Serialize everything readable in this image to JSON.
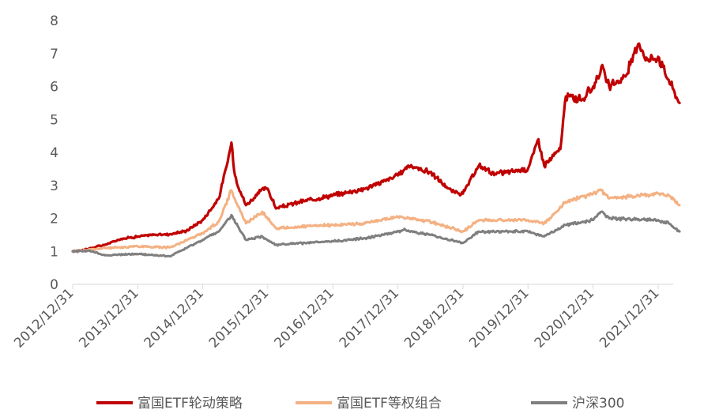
{
  "chart_data": {
    "type": "line",
    "title": "",
    "xlabel": "",
    "ylabel": "",
    "ylim": [
      0,
      8
    ],
    "yticks": [
      "0",
      "1",
      "2",
      "3",
      "4",
      "5",
      "6",
      "7",
      "8"
    ],
    "xticks": [
      "2012/12/31",
      "2013/12/31",
      "2014/12/31",
      "2015/12/31",
      "2016/12/31",
      "2017/12/31",
      "2018/12/31",
      "2019/12/31",
      "2020/12/31",
      "2021/12/31"
    ],
    "x_start": "2012/12/31",
    "x_end": "2022/04/30",
    "grid": false,
    "legend_position": "bottom",
    "series": [
      {
        "name": "富国ETF轮动策略",
        "color": "#C00000",
        "points": [
          [
            "2012/12/31",
            1.0
          ],
          [
            "2013/03/31",
            1.08
          ],
          [
            "2013/06/30",
            1.2
          ],
          [
            "2013/09/30",
            1.38
          ],
          [
            "2013/12/31",
            1.45
          ],
          [
            "2014/03/31",
            1.5
          ],
          [
            "2014/06/30",
            1.52
          ],
          [
            "2014/09/30",
            1.62
          ],
          [
            "2014/12/31",
            1.95
          ],
          [
            "2015/03/31",
            2.6
          ],
          [
            "2015/05/15",
            3.6
          ],
          [
            "2015/06/10",
            4.3
          ],
          [
            "2015/06/30",
            3.3
          ],
          [
            "2015/07/31",
            2.8
          ],
          [
            "2015/08/31",
            2.4
          ],
          [
            "2015/10/31",
            2.7
          ],
          [
            "2015/11/30",
            2.9
          ],
          [
            "2015/12/31",
            2.9
          ],
          [
            "2016/02/15",
            2.3
          ],
          [
            "2016/06/30",
            2.5
          ],
          [
            "2016/12/31",
            2.7
          ],
          [
            "2017/06/30",
            2.9
          ],
          [
            "2017/12/31",
            3.3
          ],
          [
            "2018/02/28",
            3.6
          ],
          [
            "2018/06/30",
            3.4
          ],
          [
            "2018/10/31",
            2.8
          ],
          [
            "2018/12/31",
            2.75
          ],
          [
            "2019/03/31",
            3.6
          ],
          [
            "2019/06/30",
            3.35
          ],
          [
            "2019/12/31",
            3.5
          ],
          [
            "2020/02/28",
            4.4
          ],
          [
            "2020/03/31",
            3.6
          ],
          [
            "2020/06/30",
            4.1
          ],
          [
            "2020/07/31",
            5.7
          ],
          [
            "2020/10/31",
            5.6
          ],
          [
            "2020/12/31",
            6.0
          ],
          [
            "2021/02/15",
            6.6
          ],
          [
            "2021/03/31",
            6.0
          ],
          [
            "2021/06/30",
            6.3
          ],
          [
            "2021/09/15",
            7.3
          ],
          [
            "2021/10/31",
            6.8
          ],
          [
            "2021/12/31",
            6.9
          ],
          [
            "2022/02/28",
            6.2
          ],
          [
            "2022/04/30",
            5.5
          ]
        ]
      },
      {
        "name": "富国ETF等权组合",
        "color": "#F4B183",
        "points": [
          [
            "2012/12/31",
            1.0
          ],
          [
            "2013/06/30",
            1.1
          ],
          [
            "2013/12/31",
            1.15
          ],
          [
            "2014/06/30",
            1.12
          ],
          [
            "2014/12/31",
            1.55
          ],
          [
            "2015/03/31",
            1.9
          ],
          [
            "2015/06/10",
            2.85
          ],
          [
            "2015/07/31",
            2.2
          ],
          [
            "2015/08/31",
            1.85
          ],
          [
            "2015/11/30",
            2.2
          ],
          [
            "2016/02/15",
            1.7
          ],
          [
            "2016/12/31",
            1.8
          ],
          [
            "2017/06/30",
            1.85
          ],
          [
            "2017/12/31",
            2.05
          ],
          [
            "2018/06/30",
            1.9
          ],
          [
            "2018/12/31",
            1.6
          ],
          [
            "2019/03/31",
            1.95
          ],
          [
            "2019/12/31",
            1.95
          ],
          [
            "2020/03/31",
            1.85
          ],
          [
            "2020/07/31",
            2.5
          ],
          [
            "2020/12/31",
            2.75
          ],
          [
            "2021/02/15",
            2.85
          ],
          [
            "2021/03/31",
            2.6
          ],
          [
            "2021/12/31",
            2.75
          ],
          [
            "2022/02/28",
            2.7
          ],
          [
            "2022/04/30",
            2.4
          ]
        ]
      },
      {
        "name": "沪深300",
        "color": "#7F7F7F",
        "points": [
          [
            "2012/12/31",
            1.0
          ],
          [
            "2013/03/31",
            1.02
          ],
          [
            "2013/06/30",
            0.88
          ],
          [
            "2013/12/31",
            0.92
          ],
          [
            "2014/06/30",
            0.85
          ],
          [
            "2014/12/31",
            1.35
          ],
          [
            "2015/03/31",
            1.6
          ],
          [
            "2015/06/10",
            2.1
          ],
          [
            "2015/07/31",
            1.6
          ],
          [
            "2015/08/31",
            1.35
          ],
          [
            "2015/11/30",
            1.45
          ],
          [
            "2016/02/15",
            1.2
          ],
          [
            "2016/12/31",
            1.3
          ],
          [
            "2017/06/30",
            1.4
          ],
          [
            "2017/12/31",
            1.6
          ],
          [
            "2018/01/31",
            1.65
          ],
          [
            "2018/06/30",
            1.5
          ],
          [
            "2018/12/31",
            1.25
          ],
          [
            "2019/03/31",
            1.6
          ],
          [
            "2019/12/31",
            1.6
          ],
          [
            "2020/03/31",
            1.45
          ],
          [
            "2020/07/31",
            1.8
          ],
          [
            "2020/12/31",
            1.95
          ],
          [
            "2021/02/15",
            2.2
          ],
          [
            "2021/03/31",
            2.0
          ],
          [
            "2021/12/31",
            1.95
          ],
          [
            "2022/02/28",
            1.85
          ],
          [
            "2022/04/30",
            1.6
          ]
        ]
      }
    ]
  }
}
